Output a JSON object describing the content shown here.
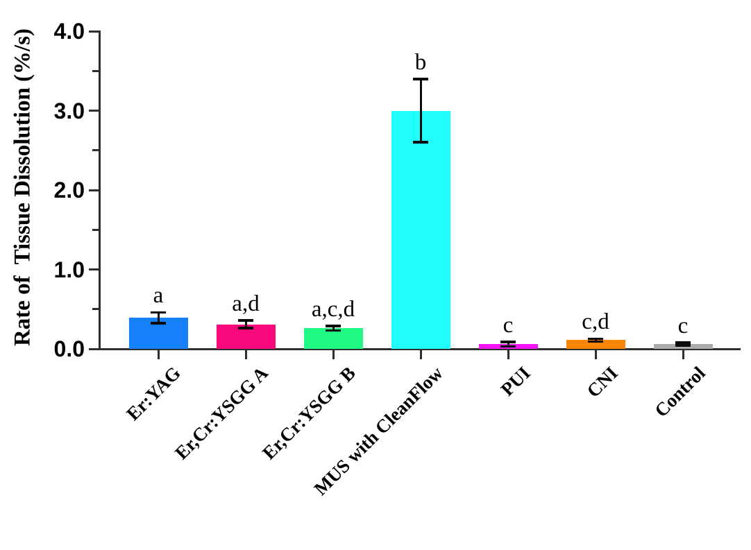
{
  "figure": {
    "ylabel": "Rate of  Tissue Dissolution (%/s)"
  },
  "chart_data": {
    "type": "bar",
    "title": "",
    "xlabel": "",
    "ylabel": "Rate of  Tissue Dissolution (%/s)",
    "ylim": [
      0,
      4.0
    ],
    "ytick_major_step": 1.0,
    "ytick_minor_step": 0.5,
    "ytick_labels": [
      "0.0",
      "1.0",
      "2.0",
      "3.0",
      "4.0"
    ],
    "grid": false,
    "legend": "none",
    "categories": [
      "Er:YAG",
      "Er,Cr:YSGG A",
      "Er,Cr:YSGG B",
      "MUS with CleanFlow",
      "PUI",
      "CNI",
      "Control"
    ],
    "series": [
      {
        "name": "Rate of Tissue Dissolution (%/s)",
        "values": [
          0.39,
          0.31,
          0.26,
          3.0,
          0.06,
          0.11,
          0.06
        ],
        "errors_sd": [
          0.07,
          0.05,
          0.03,
          0.4,
          0.03,
          0.02,
          0.02
        ]
      }
    ],
    "significance_labels": [
      "a",
      "a,d",
      "a,c,d",
      "b",
      "c",
      "c,d",
      "c"
    ],
    "bar_colors": [
      "#1580FA",
      "#F8087B",
      "#21F985",
      "#1FFDFD",
      "#F713F7",
      "#FC8505",
      "#ABABAB"
    ],
    "axis_color": "#2d2d2d",
    "error_bar_color": "#0a0a0a",
    "text_color": "#000000"
  }
}
